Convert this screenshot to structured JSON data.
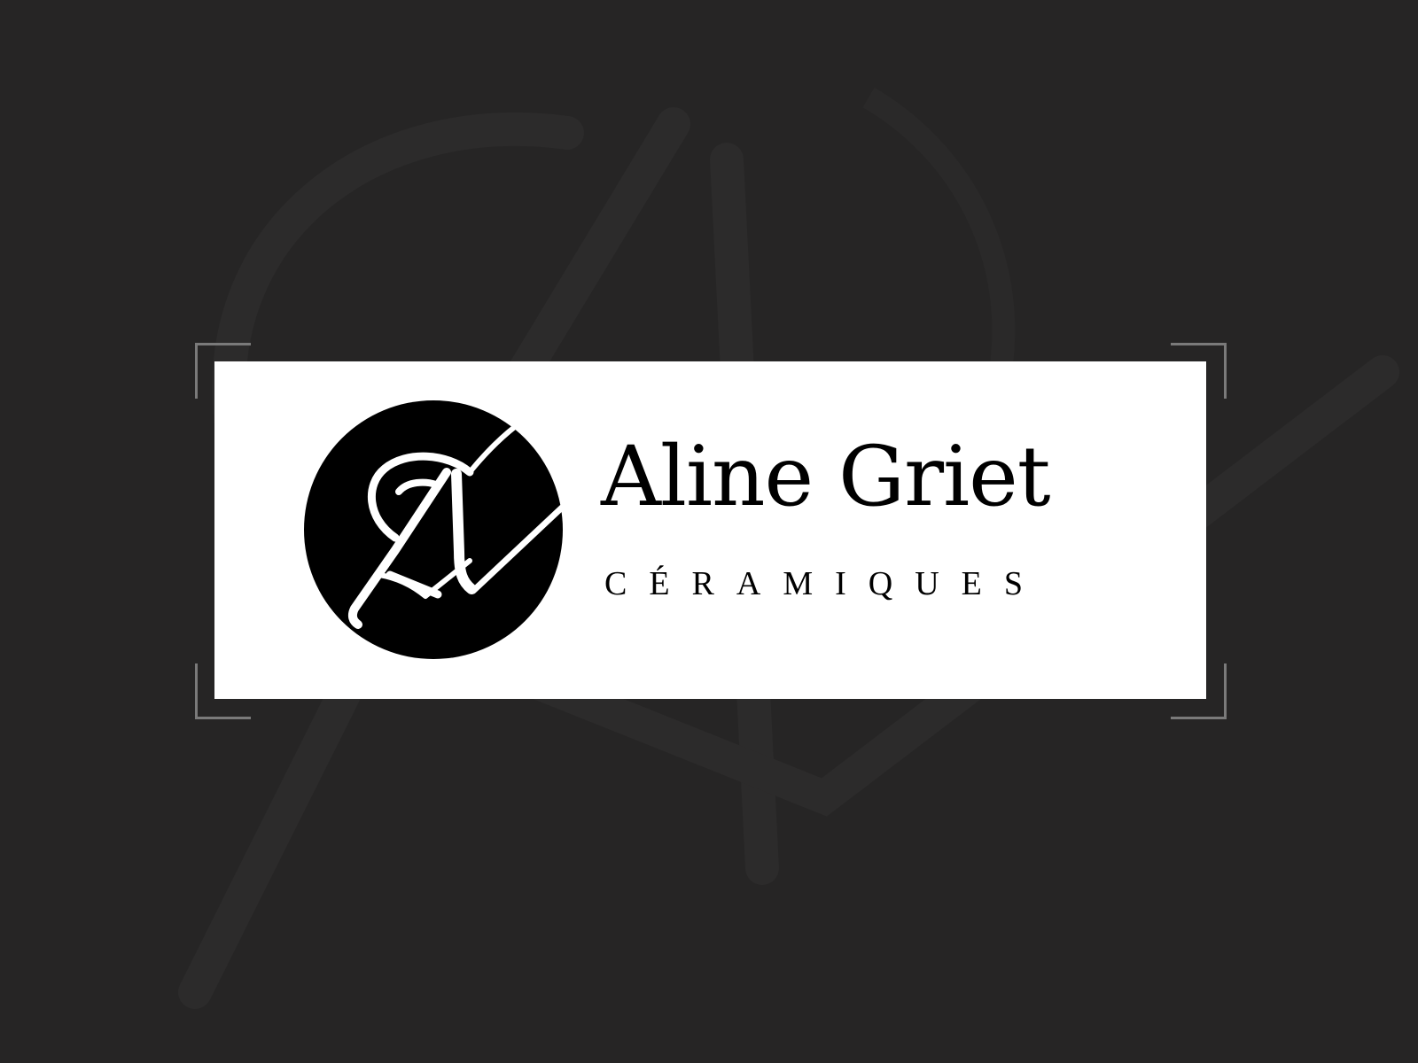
{
  "page": {
    "background_color": "#262525",
    "watermark_color": "#2c2b2b",
    "frame_color": "#7a7a7a"
  },
  "logo": {
    "card_color": "#ffffff",
    "ink_color": "#000000",
    "emblem_icon": "circle-monogram-a-icon",
    "brand_name": "Aline Griet",
    "brand_subtitle": "CÉRAMIQUES"
  }
}
